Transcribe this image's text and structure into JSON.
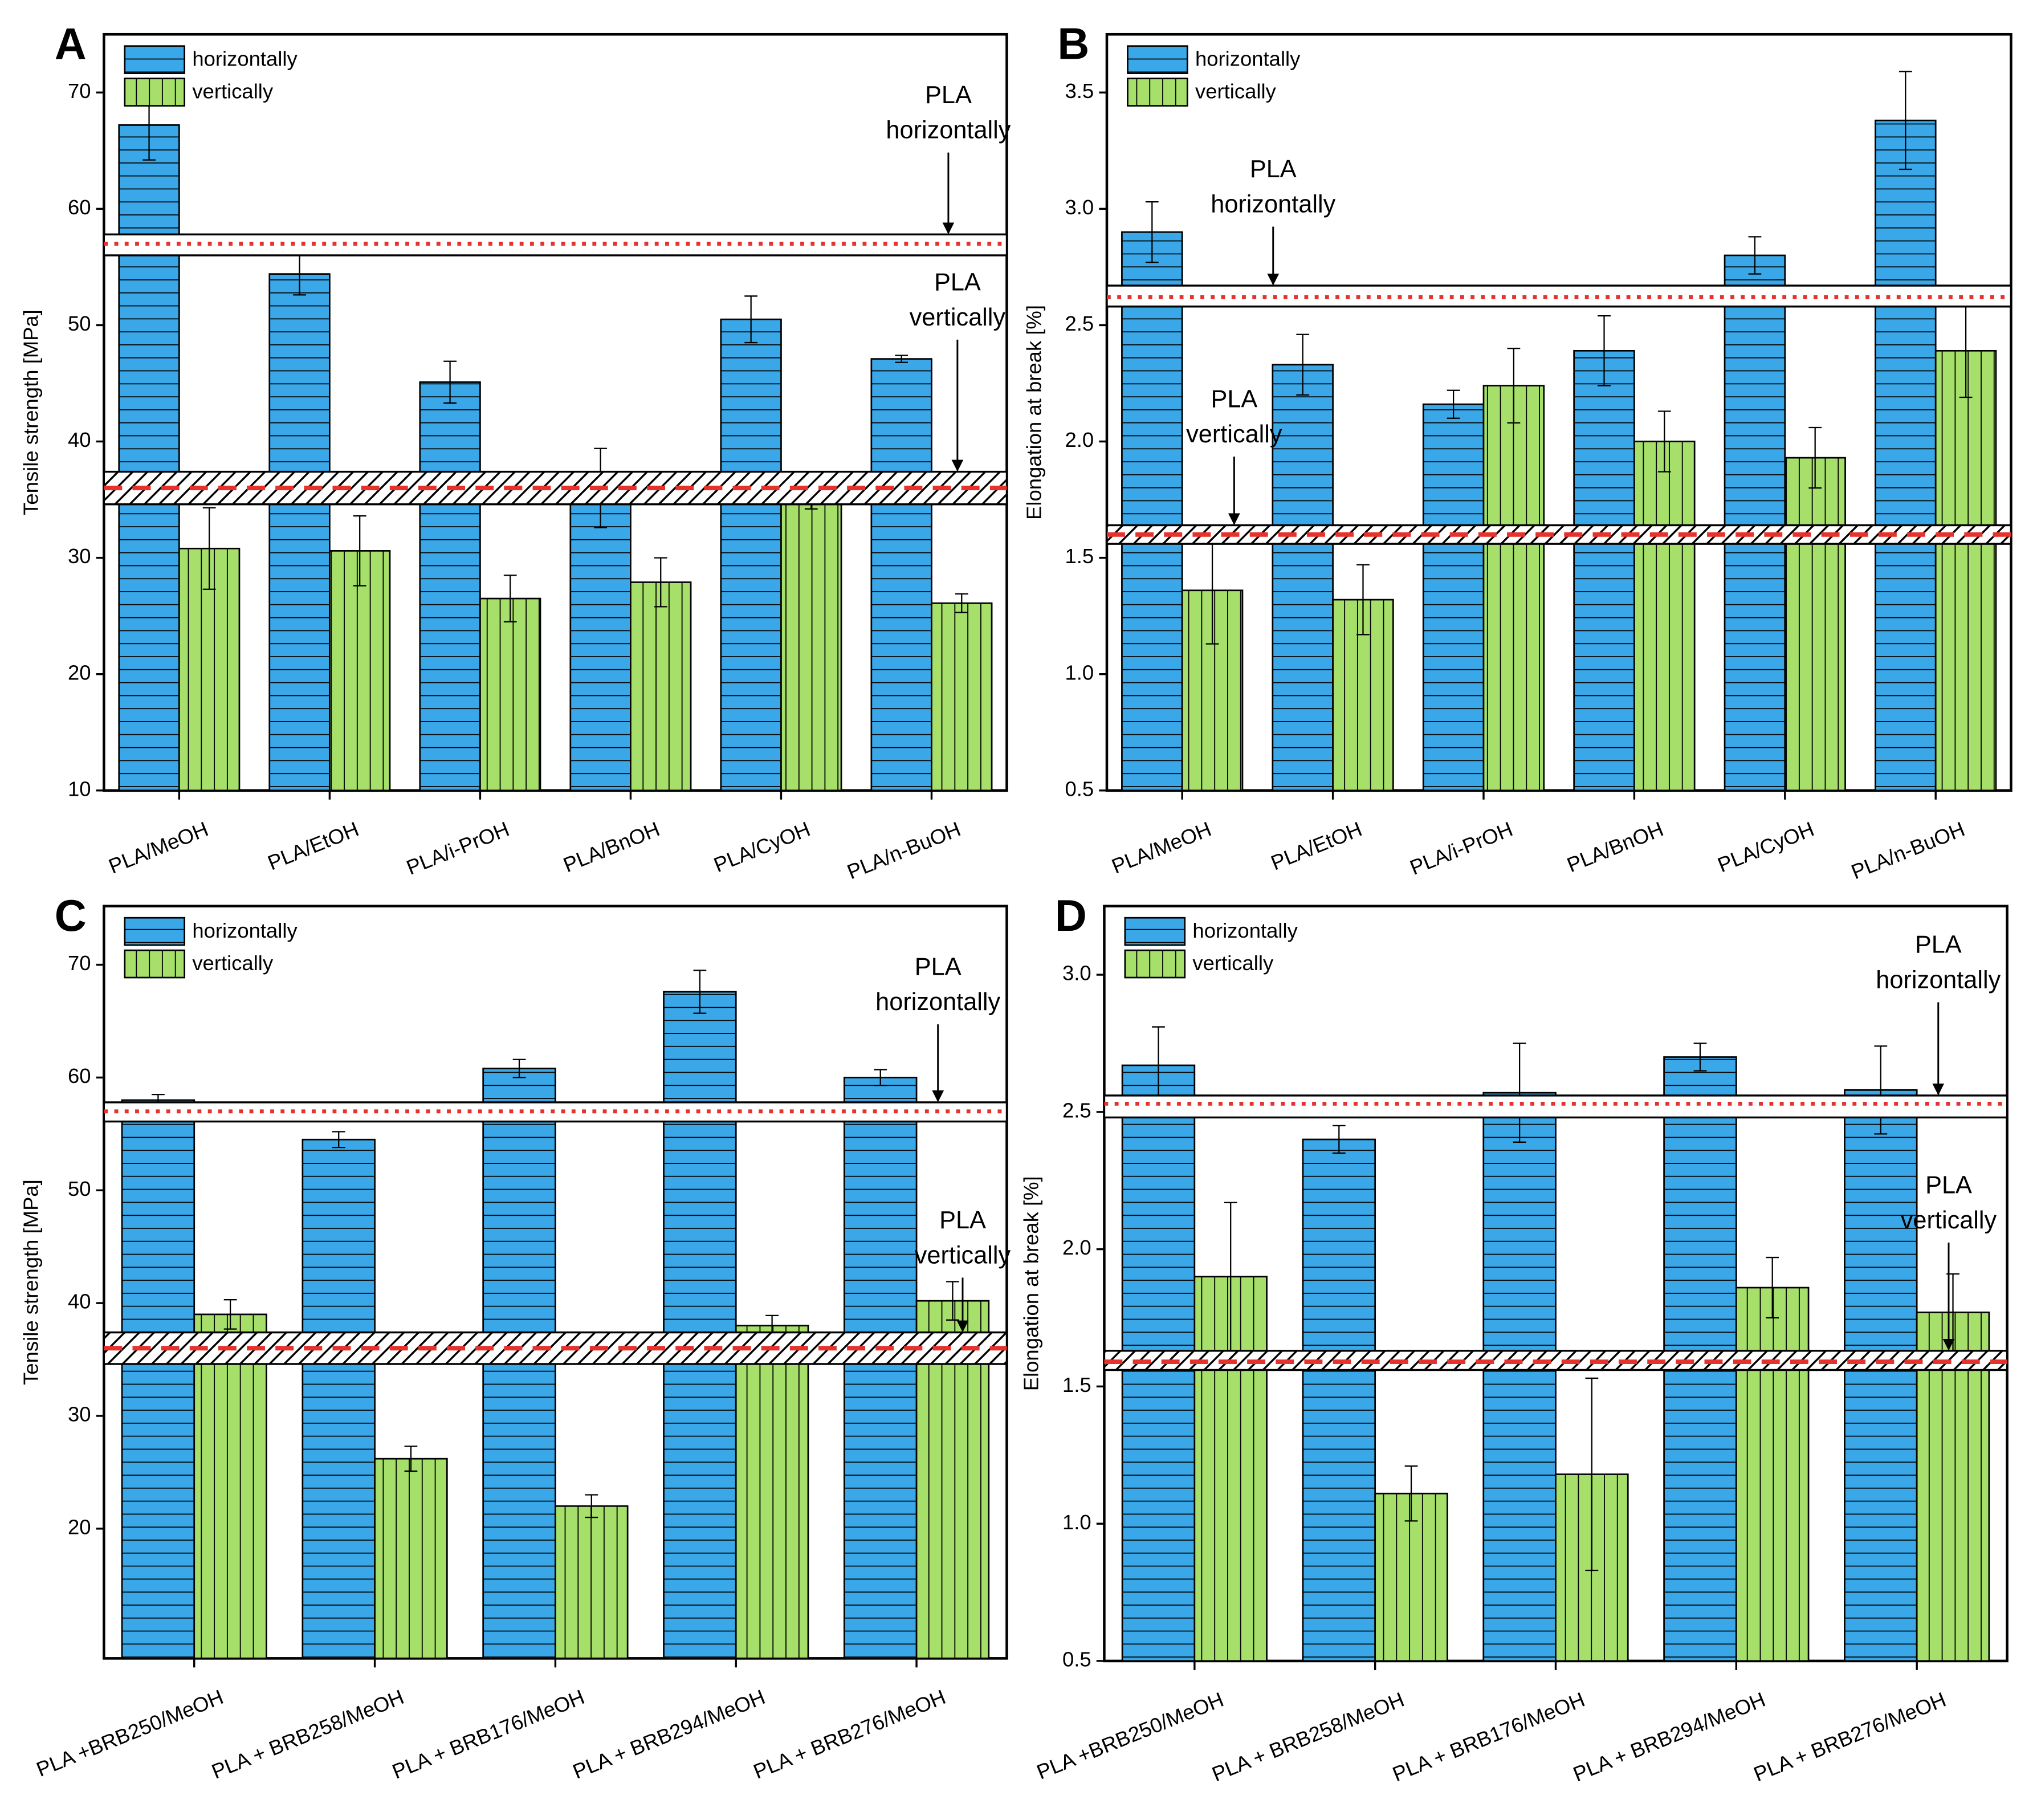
{
  "chart_data": [
    {
      "type": "bar",
      "panel_label": "A",
      "y_label": "Tensile strength [MPa]",
      "categories": [
        "PLA/MeOH",
        "PLA/EtOH",
        "PLA/i-PrOH",
        "PLA/BnOH",
        "PLA/CyOH",
        "PLA/n-BuOH"
      ],
      "series": [
        {
          "name": "horizontally",
          "color": "#3aa8e8",
          "values": [
            67.2,
            54.4,
            45.1,
            36.0,
            50.5,
            47.1
          ],
          "errors": [
            3.0,
            1.8,
            1.8,
            3.4,
            2.0,
            0.3
          ]
        },
        {
          "name": "vertically",
          "color": "#a6e06a",
          "values": [
            30.8,
            30.6,
            26.5,
            27.9,
            35.5,
            26.1
          ],
          "errors": [
            3.5,
            3.0,
            2.0,
            2.1,
            1.3,
            0.8
          ]
        }
      ],
      "ylim": [
        10,
        75
      ],
      "yticks": [
        10,
        20,
        30,
        40,
        50,
        60,
        70
      ],
      "reference_lines": [
        {
          "label_lines": [
            "PLA",
            "horizontally"
          ],
          "value": 57,
          "band": [
            56.0,
            57.8
          ],
          "hatched": false,
          "line_style": "dotted"
        },
        {
          "label_lines": [
            "PLA",
            "vertically"
          ],
          "value": 36,
          "band": [
            34.6,
            37.4
          ],
          "hatched": true,
          "line_style": "dashed"
        }
      ]
    },
    {
      "type": "bar",
      "panel_label": "B",
      "y_label": "Elongation at break [%]",
      "categories": [
        "PLA/MeOH",
        "PLA/EtOH",
        "PLA/i-PrOH",
        "PLA/BnOH",
        "PLA/CyOH",
        "PLA/n-BuOH"
      ],
      "series": [
        {
          "name": "horizontally",
          "color": "#3aa8e8",
          "values": [
            2.9,
            2.33,
            2.16,
            2.39,
            2.8,
            3.38
          ],
          "errors": [
            0.13,
            0.13,
            0.06,
            0.15,
            0.08,
            0.21
          ]
        },
        {
          "name": "vertically",
          "color": "#a6e06a",
          "values": [
            1.36,
            1.32,
            2.24,
            2.0,
            1.93,
            2.39
          ],
          "errors": [
            0.23,
            0.15,
            0.16,
            0.13,
            0.13,
            0.2
          ]
        }
      ],
      "ylim": [
        0.5,
        3.75
      ],
      "yticks": [
        0.5,
        {
          "value": 1,
          "label": "1.0"
        },
        1.5,
        {
          "value": 2,
          "label": "2.0"
        },
        2.5,
        {
          "value": 3,
          "label": "3.0"
        },
        3.5
      ],
      "reference_lines": [
        {
          "label_lines": [
            "PLA",
            "horizontally"
          ],
          "value": 2.62,
          "band": [
            2.58,
            2.67
          ],
          "hatched": false,
          "line_style": "dotted"
        },
        {
          "label_lines": [
            "PLA",
            "vertically"
          ],
          "value": 1.6,
          "band": [
            1.56,
            1.64
          ],
          "hatched": true,
          "line_style": "dashed"
        }
      ]
    },
    {
      "type": "bar",
      "panel_label": "C",
      "y_label": "Tensile strength [MPa]",
      "categories": [
        "PLA +BRB250/MeOH",
        "PLA + BRB258/MeOH",
        "PLA + BRB176/MeOH",
        "PLA + BRB294/MeOH",
        "PLA + BRB276/MeOH"
      ],
      "series": [
        {
          "name": "horizontally",
          "color": "#3aa8e8",
          "values": [
            58.0,
            54.5,
            60.8,
            67.6,
            60.0
          ],
          "errors": [
            0.5,
            0.7,
            0.8,
            1.9,
            0.7
          ]
        },
        {
          "name": "vertically",
          "color": "#a6e06a",
          "values": [
            39.0,
            26.2,
            22.0,
            38.0,
            40.2
          ],
          "errors": [
            1.3,
            1.1,
            1.0,
            0.9,
            1.7
          ]
        }
      ],
      "ylim": [
        8.5,
        75.2
      ],
      "yticks": [
        20,
        30,
        40,
        50,
        60,
        70
      ],
      "reference_lines": [
        {
          "label_lines": [
            "PLA",
            "horizontally"
          ],
          "value": 57,
          "band": [
            56.1,
            57.8
          ],
          "hatched": false,
          "line_style": "dotted"
        },
        {
          "label_lines": [
            "PLA",
            "vertically"
          ],
          "value": 36,
          "band": [
            34.6,
            37.4
          ],
          "hatched": true,
          "line_style": "dashed"
        }
      ]
    },
    {
      "type": "bar",
      "panel_label": "D",
      "y_label": "Elongation at break [%]",
      "categories": [
        "PLA +BRB250/MeOH",
        "PLA + BRB258/MeOH",
        "PLA + BRB176/MeOH",
        "PLA + BRB294/MeOH",
        "PLA + BRB276/MeOH"
      ],
      "series": [
        {
          "name": "horizontally",
          "color": "#3aa8e8",
          "values": [
            2.67,
            2.4,
            2.57,
            2.7,
            2.58
          ],
          "errors": [
            0.14,
            0.05,
            0.18,
            0.05,
            0.16
          ]
        },
        {
          "name": "vertically",
          "color": "#a6e06a",
          "values": [
            1.9,
            1.11,
            1.18,
            1.86,
            1.77
          ],
          "errors": [
            0.27,
            0.1,
            0.35,
            0.11,
            0.14
          ]
        }
      ],
      "ylim": [
        0.5,
        3.25
      ],
      "yticks": [
        0.5,
        {
          "value": 1,
          "label": "1.0"
        },
        1.5,
        {
          "value": 2,
          "label": "2.0"
        },
        2.5,
        {
          "value": 3,
          "label": "3.0"
        }
      ],
      "reference_lines": [
        {
          "label_lines": [
            "PLA",
            "horizontally"
          ],
          "value": 2.53,
          "band": [
            2.48,
            2.56
          ],
          "hatched": false,
          "line_style": "dotted"
        },
        {
          "label_lines": [
            "PLA",
            "vertically"
          ],
          "value": 1.59,
          "band": [
            1.56,
            1.63
          ],
          "hatched": true,
          "line_style": "dashed"
        }
      ]
    }
  ]
}
